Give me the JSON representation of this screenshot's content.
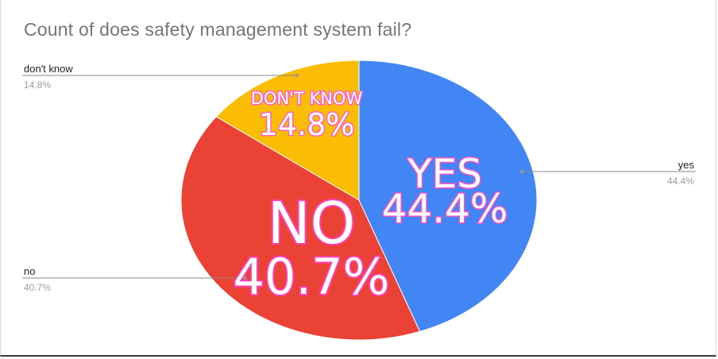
{
  "chart_data": {
    "type": "pie",
    "title": "Count of does safety management system fail?",
    "slices": [
      {
        "label": "yes",
        "percent_label": "44.4%",
        "value": 44.4,
        "color": "#4285f4",
        "overlay_top": "YES",
        "overlay_bottom": "44.4%",
        "glow": "#ff4fc4"
      },
      {
        "label": "no",
        "percent_label": "40.7%",
        "value": 40.7,
        "color": "#ea4335",
        "overlay_top": "NO",
        "overlay_bottom": "40.7%",
        "glow": "#ff3fb8"
      },
      {
        "label": "don't know",
        "percent_label": "14.8%",
        "value": 14.8,
        "color": "#fbbc04",
        "overlay_top": "DON'T KNOW",
        "overlay_bottom": "14.8%",
        "glow": "#ff5fc0"
      }
    ],
    "legend": "callouts"
  }
}
